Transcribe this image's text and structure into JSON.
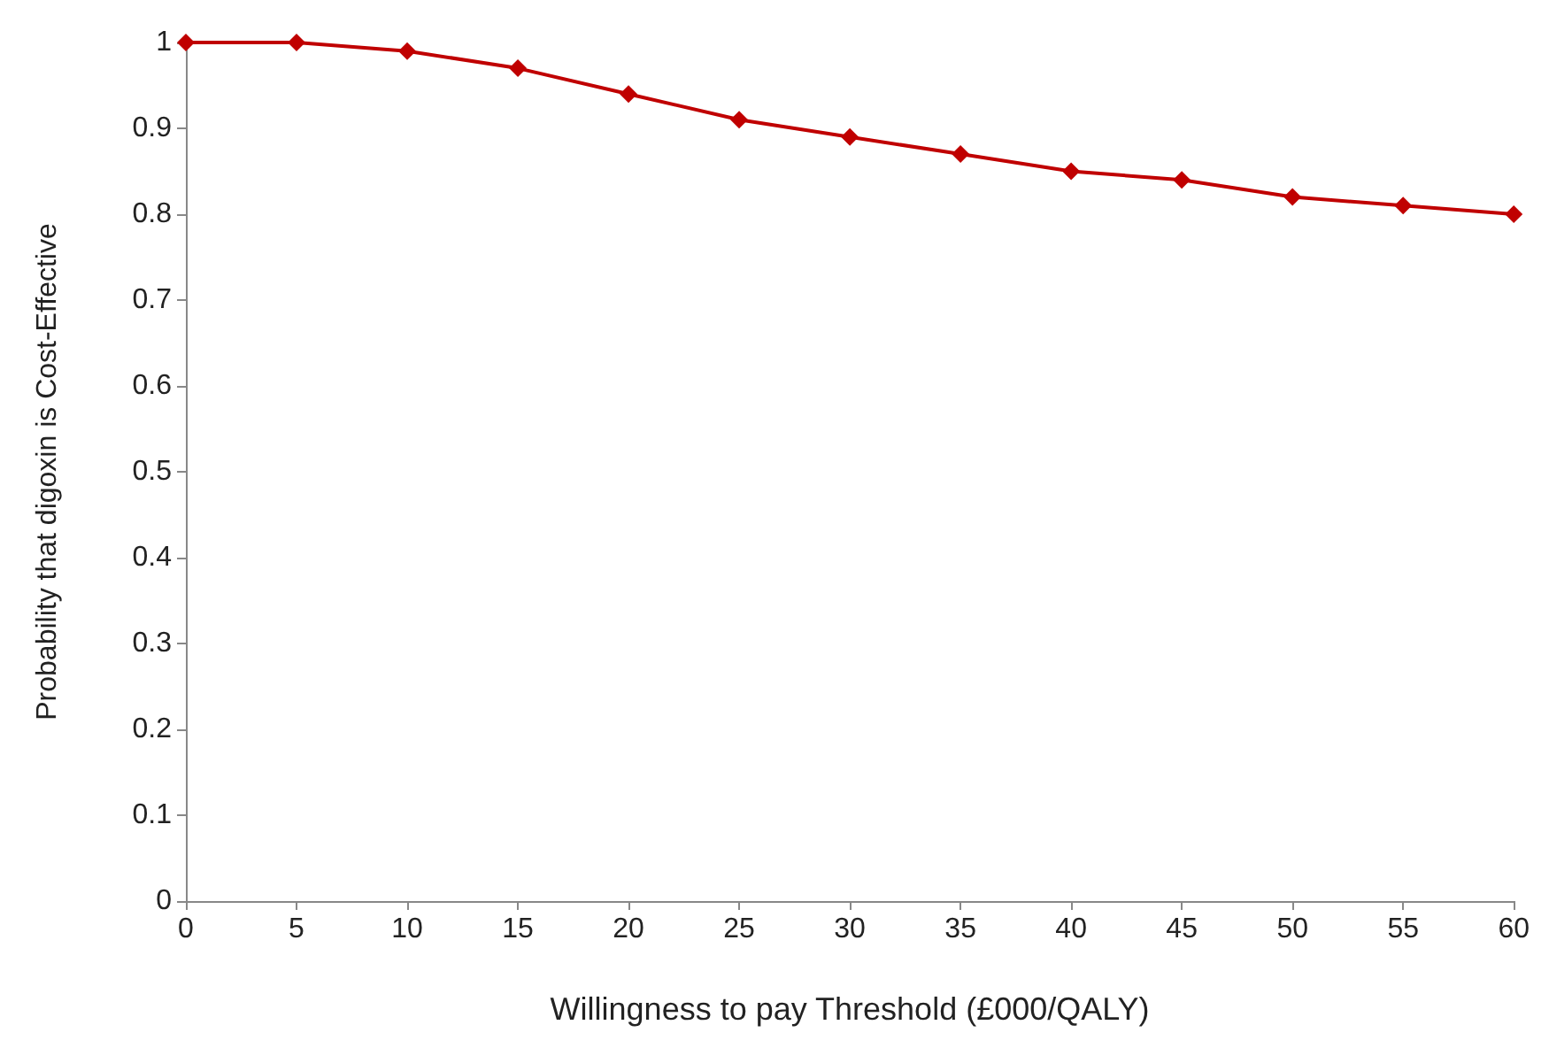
{
  "chart_data": {
    "type": "line",
    "xlabel": "Willingness to pay Threshold (£000/QALY)",
    "ylabel": "Probability that digoxin is Cost-Effective",
    "x": [
      0,
      5,
      10,
      15,
      20,
      25,
      30,
      35,
      40,
      45,
      50,
      55,
      60
    ],
    "series": [
      {
        "color": "#c00000",
        "values": [
          1,
          1,
          0.99,
          0.97,
          0.94,
          0.91,
          0.89,
          0.87,
          0.85,
          0.84,
          0.82,
          0.81,
          0.8
        ]
      }
    ],
    "xlim": [
      0,
      60
    ],
    "xticks": [
      0,
      5,
      10,
      15,
      20,
      25,
      30,
      35,
      40,
      45,
      50,
      55,
      60
    ],
    "ylim": [
      0,
      1
    ],
    "yticks": [
      0,
      0.1,
      0.2,
      0.3,
      0.4,
      0.5,
      0.6,
      0.7,
      0.8,
      0.9,
      1
    ],
    "grid": false,
    "marker": "diamond",
    "line_style": "solid"
  }
}
